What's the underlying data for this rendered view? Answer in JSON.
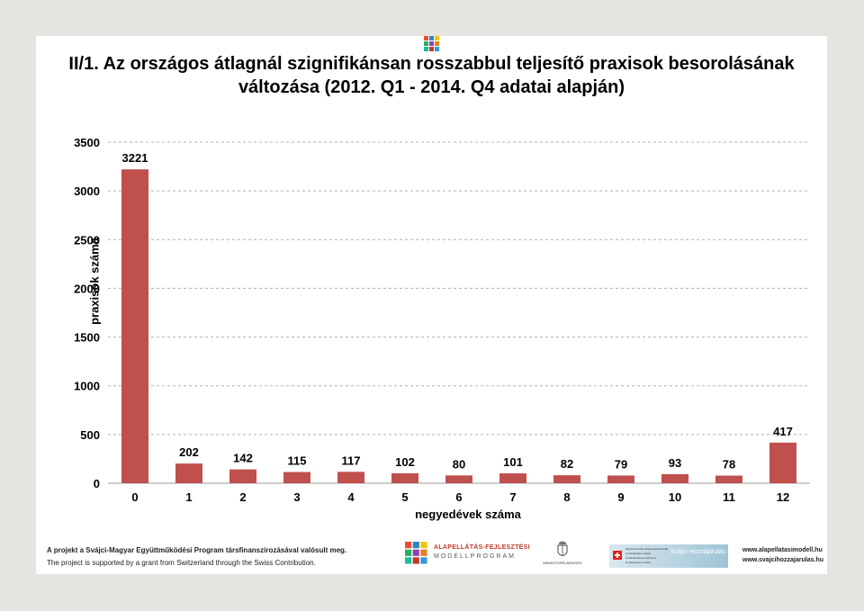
{
  "title_line1": "II/1. Az országos átlagnál szignifikánsan rosszabbul teljesítő praxisok besorolásának",
  "title_line2": "változása (2012. Q1 - 2014. Q4  adatai alapján)",
  "colors": {
    "bar": "#c0504d",
    "grid": "#b0b0b0",
    "axis": "#999999"
  },
  "chart_data": {
    "type": "bar",
    "categories": [
      "0",
      "1",
      "2",
      "3",
      "4",
      "5",
      "6",
      "7",
      "8",
      "9",
      "10",
      "11",
      "12"
    ],
    "values": [
      3221,
      202,
      142,
      115,
      117,
      102,
      80,
      101,
      82,
      79,
      93,
      78,
      417
    ],
    "title": "",
    "xlabel": "negyedévek száma",
    "ylabel": "praxisok száma",
    "ylim": [
      0,
      3500
    ],
    "yticks": [
      0,
      500,
      1000,
      1500,
      2000,
      2500,
      3000,
      3500
    ],
    "grid": true,
    "data_labels": true
  },
  "footer": {
    "line1": "A projekt a Svájci-Magyar Együttműködési Program társfinanszírozásával valósult meg.",
    "line2": "The project is supported by a grant from Switzerland through the Swiss Contribution.",
    "program_name": "ALAPELLÁTÁS-FEJLESZTÉSI",
    "program_sub": "MODELLPROGRAM",
    "ministry": "MINISZTERELNÖKSÉG",
    "swiss_small": "Schweizerische Eidgenossenschaft Confédération suisse Confederazione Svizzera Confederaziun svizra",
    "swiss_name": "Svájci Hozzájárulás",
    "url1": "www.alapellatasimodell.hu",
    "url2": "www.svajcihozzajarulas.hu"
  }
}
